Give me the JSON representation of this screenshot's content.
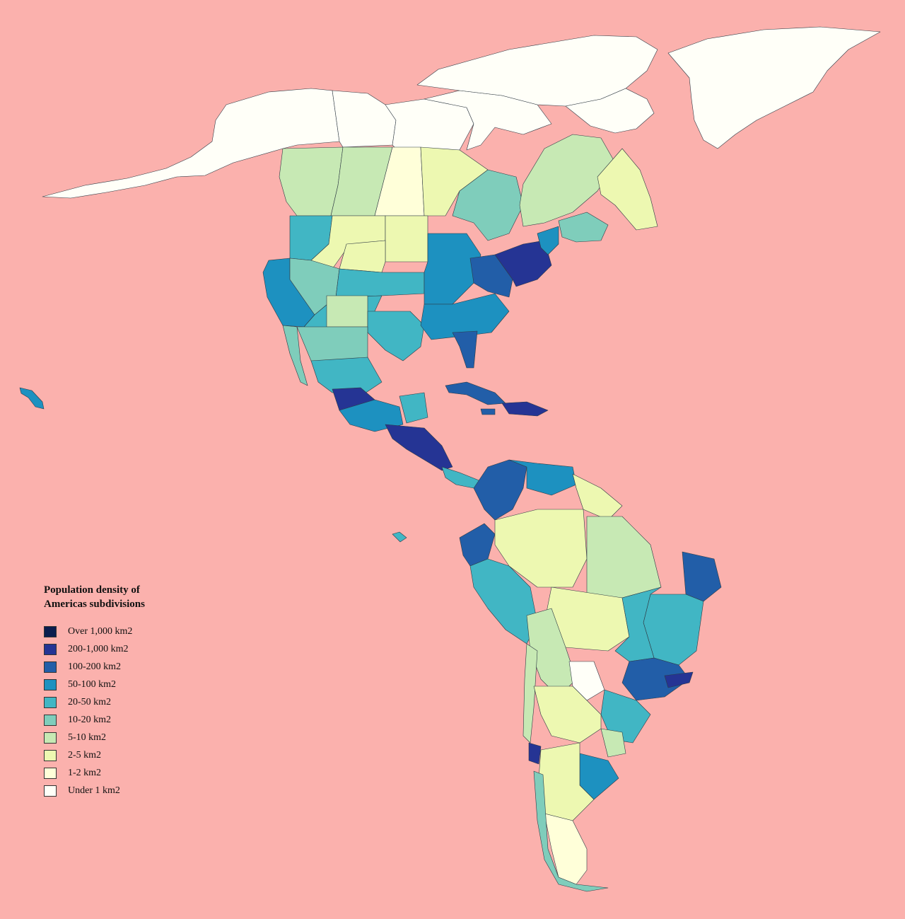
{
  "map": {
    "background": "#fbb1ad",
    "border_color": "#2f3a44"
  },
  "legend": {
    "title_line1": "Population density of",
    "title_line2": "Americas subdivisions",
    "items": [
      {
        "label": "Over 1,000 km2",
        "color": "#0b1d4e"
      },
      {
        "label": "200-1,000 km2",
        "color": "#253494"
      },
      {
        "label": "100-200 km2",
        "color": "#225ea8"
      },
      {
        "label": "50-100 km2",
        "color": "#1d91c0"
      },
      {
        "label": "20-50 km2",
        "color": "#41b6c4"
      },
      {
        "label": "10-20 km2",
        "color": "#7fcdbb"
      },
      {
        "label": "5-10 km2",
        "color": "#c7e9b4"
      },
      {
        "label": "2-5 km2",
        "color": "#edf8b1"
      },
      {
        "label": "1-2 km2",
        "color": "#ffffd9"
      },
      {
        "label": "Under 1 km2",
        "color": "#fffff8"
      }
    ]
  }
}
